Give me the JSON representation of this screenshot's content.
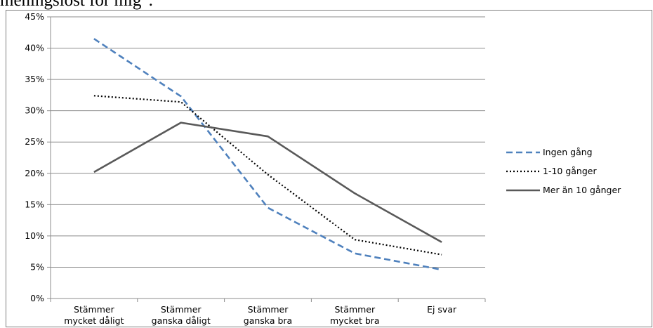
{
  "caption": "meningslöst för mig\".",
  "chart_data": {
    "type": "line",
    "categories": [
      [
        "Stämmer",
        "mycket dåligt"
      ],
      [
        "Stämmer",
        "ganska dåligt"
      ],
      [
        "Stämmer",
        "ganska bra"
      ],
      [
        "Stämmer",
        "mycket bra"
      ],
      [
        "Ej svar"
      ]
    ],
    "ylim": [
      0,
      45
    ],
    "yticks": [
      "0%",
      "5%",
      "10%",
      "15%",
      "20%",
      "25%",
      "30%",
      "35%",
      "40%",
      "45%"
    ],
    "grid": true,
    "legend_position": "right",
    "series": [
      {
        "name": "Ingen gång",
        "values": [
          41.5,
          32.3,
          14.5,
          7.2,
          4.6
        ],
        "color": "#4f81bd",
        "style": "dashed"
      },
      {
        "name": "1-10 gånger",
        "values": [
          32.4,
          31.4,
          19.8,
          9.4,
          7.0
        ],
        "color": "#000000",
        "style": "dotted"
      },
      {
        "name": "Mer än 10 gånger",
        "values": [
          20.2,
          28.1,
          25.9,
          16.8,
          9.0
        ],
        "color": "#595959",
        "style": "solid"
      }
    ]
  }
}
